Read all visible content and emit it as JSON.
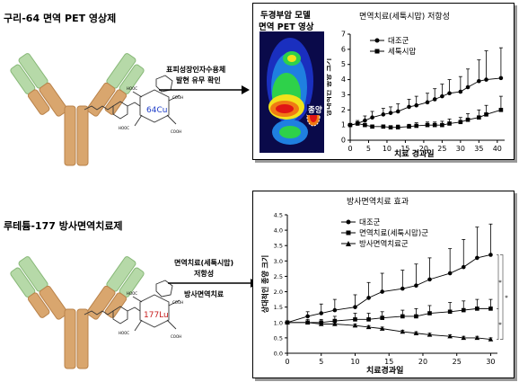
{
  "top": {
    "title": "구리-64 면역 PET 영상제",
    "arrow_label_1": "표피성장인자수용체",
    "arrow_label_2": "발현 유무 확인",
    "chelate_label": "64Cu",
    "pet_title_1": "두경부암 모델",
    "pet_title_2": "면역 PET 영상",
    "tumor_label": "종양"
  },
  "bottom": {
    "title": "루테튬-177 방사면역치료제",
    "arrow_label_1": "면역치료(세툭시맙)",
    "arrow_label_2": "저항성",
    "arrow_label_3": "방사면역치료",
    "chelate_label": "177Lu"
  },
  "colors": {
    "antibody_tan": "#d9a66e",
    "antibody_tan_dark": "#b9824a",
    "antibody_green": "#b6d9a8",
    "antibody_green_dark": "#87b877",
    "chelate_text_top": "#1f3ec8",
    "chelate_text_bottom": "#c81e1e"
  },
  "chart_data": [
    {
      "type": "line",
      "title": "면역치료(세툭시맙) 저항성",
      "xlabel": "치료 경과일",
      "ylabel": "상대적인 종양 크기",
      "xlim": [
        0,
        42
      ],
      "ylim": [
        0,
        7
      ],
      "xticks": [
        0,
        5,
        10,
        15,
        20,
        25,
        30,
        35,
        40
      ],
      "yticks": [
        0,
        1,
        2,
        3,
        4,
        5,
        6,
        7
      ],
      "legend_position": "top-left",
      "series": [
        {
          "name": "대조군",
          "marker": "circle",
          "x": [
            0,
            2,
            4,
            6,
            9,
            11,
            13,
            16,
            18,
            21,
            23,
            25,
            27,
            30,
            32,
            35,
            37,
            41
          ],
          "y": [
            1.0,
            1.1,
            1.3,
            1.5,
            1.7,
            1.8,
            1.9,
            2.2,
            2.3,
            2.5,
            2.7,
            2.9,
            3.1,
            3.2,
            3.5,
            3.9,
            4.0,
            4.1
          ],
          "err": [
            0.1,
            0.2,
            0.3,
            0.4,
            0.4,
            0.4,
            0.5,
            0.5,
            0.6,
            0.6,
            0.7,
            0.8,
            0.9,
            1.0,
            1.2,
            1.4,
            1.9,
            2.0
          ]
        },
        {
          "name": "세툭시맙",
          "marker": "square",
          "x": [
            0,
            2,
            4,
            6,
            9,
            11,
            13,
            16,
            18,
            21,
            23,
            25,
            27,
            30,
            32,
            35,
            37,
            41
          ],
          "y": [
            1.0,
            1.1,
            1.0,
            0.9,
            0.9,
            0.85,
            0.85,
            0.9,
            0.95,
            1.0,
            1.0,
            1.0,
            1.1,
            1.2,
            1.35,
            1.5,
            1.7,
            2.0
          ],
          "err": [
            0.1,
            0.1,
            0.1,
            0.1,
            0.1,
            0.1,
            0.15,
            0.15,
            0.2,
            0.2,
            0.2,
            0.25,
            0.3,
            0.3,
            0.4,
            0.5,
            0.6,
            0.9
          ]
        }
      ]
    },
    {
      "type": "line",
      "title": "방사면역치료 효과",
      "xlabel": "치료경과일",
      "ylabel": "상대적인 종양 크기",
      "xlim": [
        0,
        31
      ],
      "ylim": [
        0,
        4.5
      ],
      "xticks": [
        0,
        5,
        10,
        15,
        20,
        25,
        30
      ],
      "yticks": [
        0,
        0.5,
        1.0,
        1.5,
        2.0,
        2.5,
        3.0,
        3.5,
        4.0,
        4.5
      ],
      "legend_position": "top-left",
      "series": [
        {
          "name": "대조군",
          "marker": "circle",
          "x": [
            0,
            3,
            5,
            7,
            10,
            12,
            14,
            17,
            19,
            21,
            24,
            26,
            28,
            30
          ],
          "y": [
            1.0,
            1.2,
            1.3,
            1.4,
            1.5,
            1.8,
            2.0,
            2.1,
            2.2,
            2.4,
            2.6,
            2.8,
            3.1,
            3.2
          ],
          "err": [
            0.05,
            0.15,
            0.3,
            0.35,
            0.4,
            0.5,
            0.6,
            0.6,
            0.7,
            0.7,
            0.8,
            0.9,
            1.0,
            1.0
          ]
        },
        {
          "name": "면역치료(세툭시맙)군",
          "marker": "square",
          "x": [
            0,
            3,
            5,
            7,
            10,
            12,
            14,
            17,
            19,
            21,
            24,
            26,
            28,
            30
          ],
          "y": [
            1.0,
            1.0,
            1.0,
            1.05,
            1.1,
            1.1,
            1.15,
            1.2,
            1.2,
            1.3,
            1.35,
            1.4,
            1.45,
            1.45
          ],
          "err": [
            0.05,
            0.1,
            0.1,
            0.15,
            0.2,
            0.2,
            0.2,
            0.2,
            0.25,
            0.25,
            0.3,
            0.3,
            0.3,
            0.3
          ]
        },
        {
          "name": "방사면역치료군",
          "marker": "triangle",
          "x": [
            0,
            3,
            5,
            7,
            10,
            12,
            14,
            17,
            19,
            21,
            24,
            26,
            28,
            30
          ],
          "y": [
            1.0,
            1.0,
            0.95,
            0.95,
            0.9,
            0.85,
            0.8,
            0.7,
            0.65,
            0.6,
            0.55,
            0.5,
            0.5,
            0.45
          ],
          "err": [
            0.05,
            0.05,
            0.05,
            0.05,
            0.05,
            0.05,
            0.05,
            0.05,
            0.05,
            0.05,
            0.05,
            0.05,
            0.05,
            0.05
          ]
        }
      ],
      "significance_markers": [
        "*",
        "*",
        "*"
      ]
    }
  ]
}
